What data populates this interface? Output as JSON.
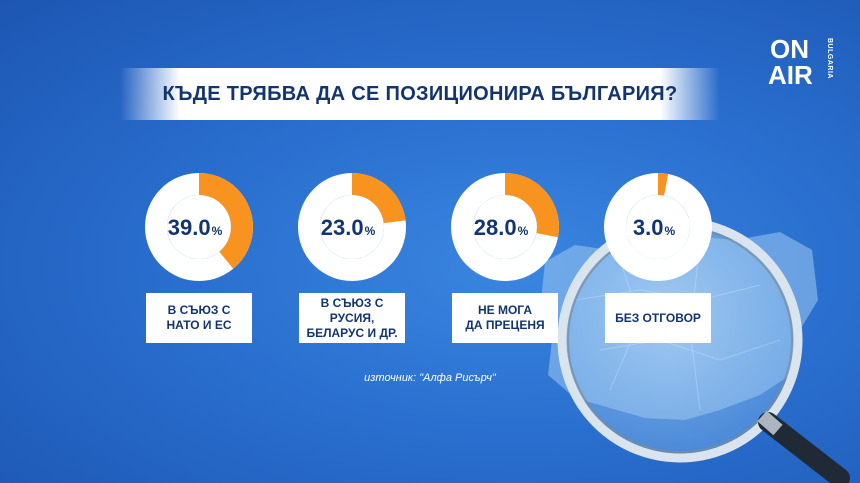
{
  "title": "КЪДЕ ТРЯБВА ДА СЕ ПОЗИЦИОНИРА БЪЛГАРИЯ?",
  "logo": {
    "line1": "ON",
    "line2": "AIR",
    "sub": "BULGARIA"
  },
  "source": "източник: \"Алфа Рисърч\"",
  "colors": {
    "accent": "#f7931e",
    "ring_bg": "#ffffff",
    "text_dark": "#12356f"
  },
  "chart_data": {
    "type": "pie",
    "title": "КЪДЕ ТРЯБВА ДА СЕ ПОЗИЦИОНИРА БЪЛГАРИЯ?",
    "unit": "%",
    "items": [
      {
        "value": 39.0,
        "value_label": "39.0",
        "label": "В СЪЮЗ С\nНАТО И ЕС"
      },
      {
        "value": 23.0,
        "value_label": "23.0",
        "label": "В СЪЮЗ С РУСИЯ,\nБЕЛАРУС И ДР."
      },
      {
        "value": 28.0,
        "value_label": "28.0",
        "label": "НЕ МОГА\nДА ПРЕЦЕНЯ"
      },
      {
        "value": 3.0,
        "value_label": "3.0",
        "label": "БЕЗ ОТГОВОР"
      }
    ]
  }
}
